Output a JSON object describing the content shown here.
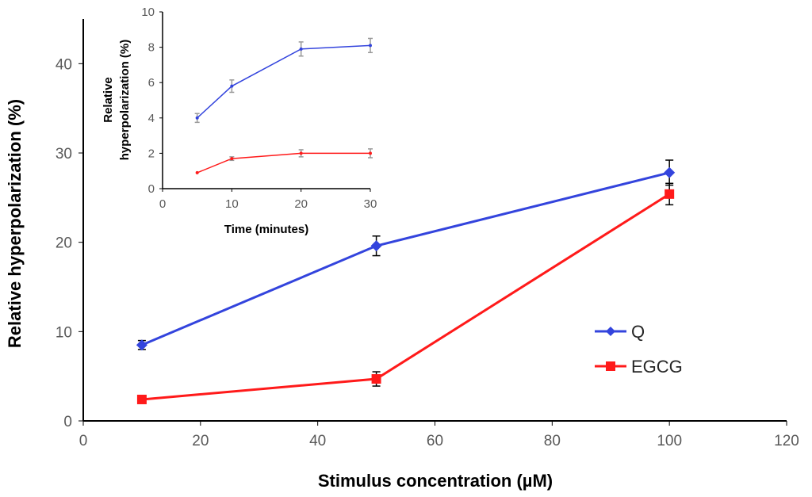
{
  "chart_data": [
    {
      "type": "line",
      "xlabel": "Stimulus concentration (µM)",
      "ylabel": "Relative hyperpolarization (%)",
      "xlim": [
        0,
        120
      ],
      "ylim": [
        0,
        45
      ],
      "xticks": [
        0,
        20,
        40,
        60,
        80,
        100,
        120
      ],
      "yticks": [
        0,
        10,
        20,
        30,
        40
      ],
      "grid": false,
      "legend_position": "right",
      "series": [
        {
          "name": "Q",
          "color": "#3344dd",
          "marker": "diamond",
          "x": [
            10,
            50,
            100
          ],
          "y": [
            8.5,
            19.6,
            27.8
          ],
          "error": [
            0.5,
            1.1,
            1.4
          ]
        },
        {
          "name": "EGCG",
          "color": "#ff1a1a",
          "marker": "square",
          "x": [
            10,
            50,
            100
          ],
          "y": [
            2.4,
            4.7,
            25.4
          ],
          "error": [
            0.3,
            0.8,
            1.2
          ]
        }
      ]
    },
    {
      "type": "line",
      "xlabel": "Time (minutes)",
      "ylabel": "Relative hyperpolarization (%)",
      "xlim": [
        0,
        30
      ],
      "ylim": [
        0,
        10
      ],
      "xticks": [
        0,
        10,
        20,
        30
      ],
      "yticks": [
        0,
        2,
        4,
        6,
        8,
        10
      ],
      "grid": false,
      "series": [
        {
          "color": "#3344dd",
          "x": [
            5,
            10,
            20,
            30
          ],
          "y": [
            4.0,
            5.8,
            7.9,
            8.1
          ],
          "error": [
            0.25,
            0.35,
            0.4,
            0.4
          ]
        },
        {
          "color": "#ff1a1a",
          "x": [
            5,
            10,
            20,
            30
          ],
          "y": [
            0.9,
            1.7,
            2.0,
            2.0
          ],
          "error": [
            0.0,
            0.1,
            0.2,
            0.25
          ]
        }
      ]
    }
  ],
  "main": {
    "ylabel": "Relative hyperpolarization (%)",
    "xlabel": "Stimulus concentration (µM)",
    "legend": {
      "q": "Q",
      "egcg": "EGCG"
    }
  },
  "inset": {
    "ylabel_line1": "Relative",
    "ylabel_line2": "hyperpolarization (%)",
    "xlabel": "Time (minutes)"
  }
}
